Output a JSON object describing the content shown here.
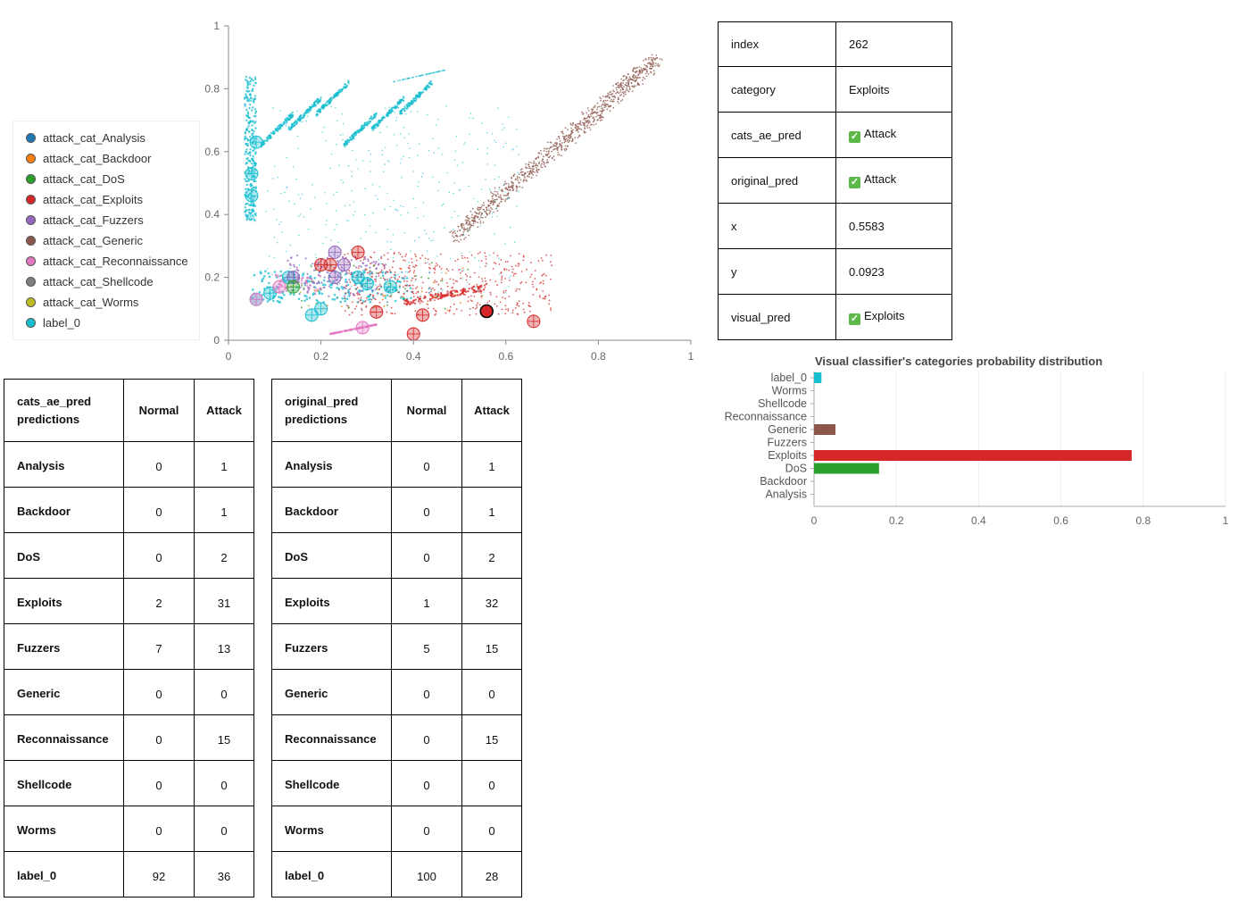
{
  "scatter": {
    "x_ticks": [
      "0",
      "0.2",
      "0.4",
      "0.6",
      "0.8",
      "1"
    ],
    "y_ticks": [
      "0",
      "0.2",
      "0.4",
      "0.6",
      "0.8",
      "1"
    ],
    "legend": [
      {
        "label": "attack_cat_Analysis",
        "color": "#1f77b4"
      },
      {
        "label": "attack_cat_Backdoor",
        "color": "#ff7f0e"
      },
      {
        "label": "attack_cat_DoS",
        "color": "#2ca02c"
      },
      {
        "label": "attack_cat_Exploits",
        "color": "#d62728"
      },
      {
        "label": "attack_cat_Fuzzers",
        "color": "#9467bd"
      },
      {
        "label": "attack_cat_Generic",
        "color": "#8c564b"
      },
      {
        "label": "attack_cat_Reconnaissance",
        "color": "#e377c2"
      },
      {
        "label": "attack_cat_Shellcode",
        "color": "#7f7f7f"
      },
      {
        "label": "attack_cat_Worms",
        "color": "#bcbd22"
      },
      {
        "label": "label_0",
        "color": "#17becf"
      }
    ]
  },
  "info": {
    "rows": [
      {
        "key": "index",
        "value": "262",
        "check": false
      },
      {
        "key": "category",
        "value": "Exploits",
        "check": false
      },
      {
        "key": "cats_ae_pred",
        "value": "Attack",
        "check": true
      },
      {
        "key": "original_pred",
        "value": "Attack",
        "check": true
      },
      {
        "key": "x",
        "value": "0.5583",
        "check": false
      },
      {
        "key": "y",
        "value": "0.0923",
        "check": false
      },
      {
        "key": "visual_pred",
        "value": "Exploits",
        "check": true
      }
    ],
    "check_glyph": "✓"
  },
  "tables": [
    {
      "title_line1": "cats_ae_pred",
      "title_line2": "predictions",
      "col1": "Normal",
      "col2": "Attack",
      "rows": [
        {
          "name": "Analysis",
          "normal": "0",
          "attack": "1"
        },
        {
          "name": "Backdoor",
          "normal": "0",
          "attack": "1"
        },
        {
          "name": "DoS",
          "normal": "0",
          "attack": "2"
        },
        {
          "name": "Exploits",
          "normal": "2",
          "attack": "31"
        },
        {
          "name": "Fuzzers",
          "normal": "7",
          "attack": "13"
        },
        {
          "name": "Generic",
          "normal": "0",
          "attack": "0"
        },
        {
          "name": "Reconnaissance",
          "normal": "0",
          "attack": "15"
        },
        {
          "name": "Shellcode",
          "normal": "0",
          "attack": "0"
        },
        {
          "name": "Worms",
          "normal": "0",
          "attack": "0"
        },
        {
          "name": "label_0",
          "normal": "92",
          "attack": "36"
        }
      ]
    },
    {
      "title_line1": "original_pred",
      "title_line2": "predictions",
      "col1": "Normal",
      "col2": "Attack",
      "rows": [
        {
          "name": "Analysis",
          "normal": "0",
          "attack": "1"
        },
        {
          "name": "Backdoor",
          "normal": "0",
          "attack": "1"
        },
        {
          "name": "DoS",
          "normal": "0",
          "attack": "2"
        },
        {
          "name": "Exploits",
          "normal": "1",
          "attack": "32"
        },
        {
          "name": "Fuzzers",
          "normal": "5",
          "attack": "15"
        },
        {
          "name": "Generic",
          "normal": "0",
          "attack": "0"
        },
        {
          "name": "Reconnaissance",
          "normal": "0",
          "attack": "15"
        },
        {
          "name": "Shellcode",
          "normal": "0",
          "attack": "0"
        },
        {
          "name": "Worms",
          "normal": "0",
          "attack": "0"
        },
        {
          "name": "label_0",
          "normal": "100",
          "attack": "28"
        }
      ]
    }
  ],
  "chart_data": {
    "type": "bar",
    "orientation": "horizontal",
    "title": "Visual classifier's categories probability distribution",
    "categories": [
      "label_0",
      "Worms",
      "Shellcode",
      "Reconnaissance",
      "Generic",
      "Fuzzers",
      "Exploits",
      "DoS",
      "Backdoor",
      "Analysis"
    ],
    "values": [
      0.018,
      0,
      0,
      0,
      0.052,
      0,
      0.772,
      0.158,
      0,
      0
    ],
    "colors": [
      "#17becf",
      "#bcbd22",
      "#7f7f7f",
      "#e377c2",
      "#8c564b",
      "#9467bd",
      "#d62728",
      "#2ca02c",
      "#ff7f0e",
      "#1f77b4"
    ],
    "x_ticks": [
      "0",
      "0.2",
      "0.4",
      "0.6",
      "0.8",
      "1"
    ],
    "xlim": [
      0,
      1
    ]
  }
}
